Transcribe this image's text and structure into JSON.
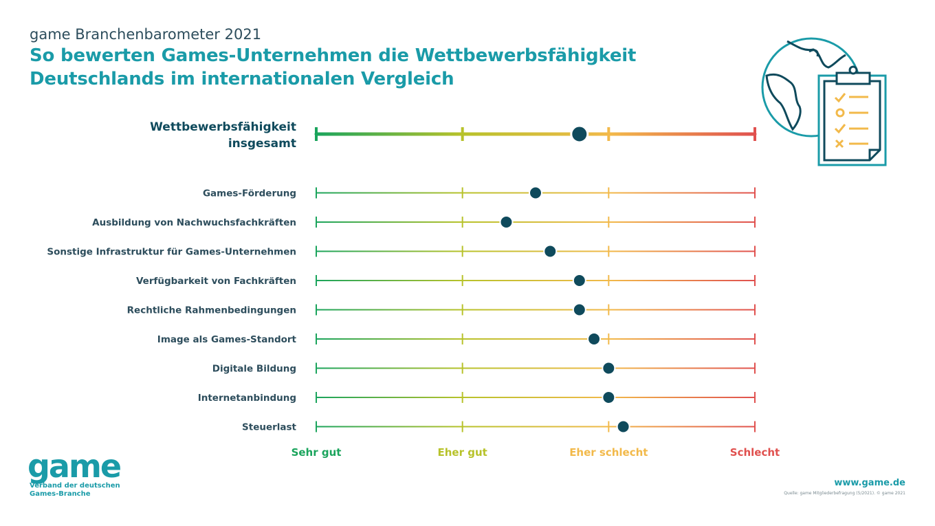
{
  "header": {
    "supertitle": "game Branchenbarometer 2021",
    "title_line1": "So bewerten Games-Unternehmen die Wettbewerbsfähigkeit",
    "title_line2": "Deutschlands im internationalen Vergleich"
  },
  "chart_data": {
    "type": "dot-scale",
    "scale": {
      "min": 1,
      "max": 4,
      "direction": "lower is better"
    },
    "tick_labels": [
      "Sehr gut",
      "Eher gut",
      "Eher schlecht",
      "Schlecht"
    ],
    "tick_colors": [
      "#1aa45c",
      "#b7c22a",
      "#f2b94a",
      "#e0504e"
    ],
    "overall": {
      "label_line1": "Wettbewerbsfähigkeit",
      "label_line2": "insgesamt",
      "value": 2.8
    },
    "categories": [
      "Games-Förderung",
      "Ausbildung von Nachwuchsfachkräften",
      "Sonstige Infrastruktur für Games-Unternehmen",
      "Verfügbarkeit von Fachkräften",
      "Rechtliche Rahmenbedingungen",
      "Image als Games-Standort",
      "Digitale Bildung",
      "Internetanbindung",
      "Steuerlast"
    ],
    "values": [
      2.5,
      2.3,
      2.6,
      2.8,
      2.8,
      2.9,
      3.0,
      3.0,
      3.1
    ],
    "dot_color": "#0f4a5c"
  },
  "logo": {
    "word": "game",
    "tagline_line1": "Verband der deutschen",
    "tagline_line2": "Games-Branche"
  },
  "footer": {
    "website": "www.game.de",
    "source": "Quelle: game Mitgliederbefragung (5/2021). © game 2021"
  },
  "illustration": {
    "icons": [
      "globe-icon",
      "clipboard-checklist-icon"
    ]
  }
}
